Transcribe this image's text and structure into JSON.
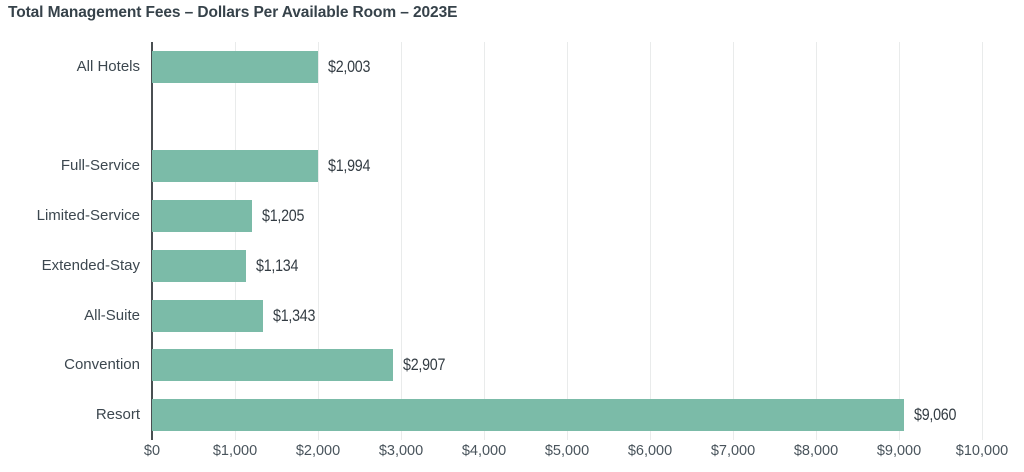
{
  "chart_data": {
    "type": "bar",
    "orientation": "horizontal",
    "title": "Total Management Fees – Dollars Per Available Room – 2023E",
    "categories": [
      "All Hotels",
      "Full-Service",
      "Limited-Service",
      "Extended-Stay",
      "All-Suite",
      "Convention",
      "Resort"
    ],
    "values": [
      2003,
      1994,
      1205,
      1134,
      1343,
      2907,
      9060
    ],
    "data_labels": [
      "$2,003",
      "$1,994",
      "$1,205",
      "$1,134",
      "$1,343",
      "$2,907",
      "$9,060"
    ],
    "xlabel": "",
    "ylabel": "",
    "xlim": [
      0,
      10000
    ],
    "x_ticks": [
      0,
      1000,
      2000,
      3000,
      4000,
      5000,
      6000,
      7000,
      8000,
      9000,
      10000
    ],
    "x_tick_labels": [
      "$0",
      "$1,000",
      "$2,000",
      "$3,000",
      "$4,000",
      "$5,000",
      "$6,000",
      "$7,000",
      "$8,000",
      "$9,000",
      "$10,000"
    ],
    "grid": "vertical",
    "legend": "none",
    "spacer_after": "All Hotels",
    "colors": {
      "bar": "#7BBBA8",
      "axis_line": "#4A4F52",
      "gridline": "#E9EBEB",
      "title": "#36424A",
      "category_label": "#3C474F",
      "value_label": "#333C43",
      "tick_label": "#49545C"
    }
  }
}
